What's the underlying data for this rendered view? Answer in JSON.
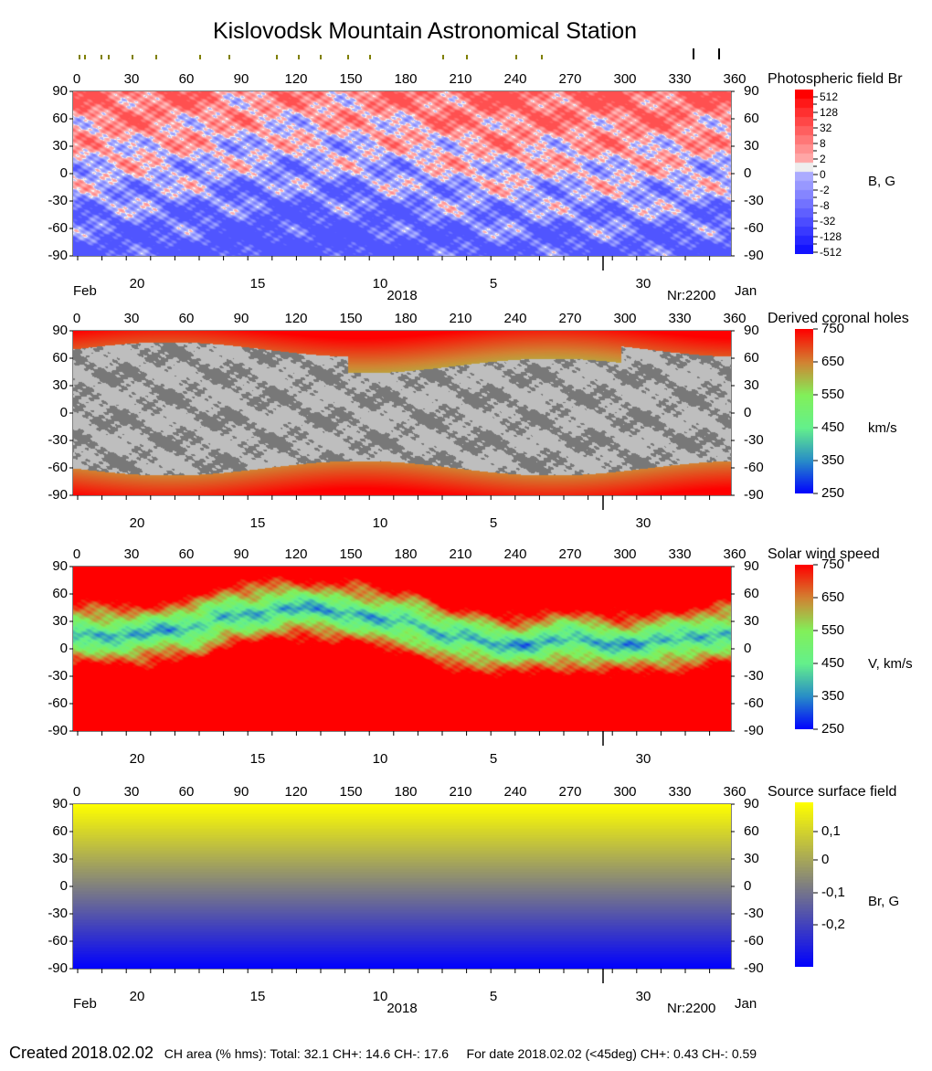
{
  "title": "Kislovodsk Mountain Astronomical Station",
  "longitude_ticks": [
    0,
    30,
    60,
    90,
    120,
    150,
    180,
    210,
    240,
    270,
    300,
    330,
    360
  ],
  "latitude_ticks": [
    90,
    60,
    30,
    0,
    -30,
    -60,
    -90
  ],
  "date_axis": {
    "day_labels": [
      {
        "lon": 35,
        "label": "20"
      },
      {
        "lon": 101,
        "label": "15"
      },
      {
        "lon": 168,
        "label": "10"
      },
      {
        "lon": 230,
        "label": "5"
      },
      {
        "lon": 312,
        "label": "30"
      }
    ],
    "month_left": "Feb",
    "month_right": "Jan",
    "year": "2018",
    "rotation": "Nr:2200",
    "month_boundary_lon": 290
  },
  "top_markers": {
    "olive_lons": [
      2,
      5,
      14,
      18,
      31,
      44,
      68,
      84,
      110,
      122,
      134,
      149,
      161,
      201,
      214,
      241,
      255
    ],
    "black_lons": [
      338,
      352
    ],
    "colors": {
      "olive": "#808000",
      "black": "#000000"
    }
  },
  "chart_data": [
    {
      "type": "heatmap",
      "title": "Photospheric field Br",
      "unit": "B, G",
      "xlim": [
        0,
        360
      ],
      "ylim": [
        -90,
        90
      ],
      "colorbar": {
        "ticks": [
          "512",
          "128",
          "32",
          "8",
          "2",
          "0",
          "-2",
          "-8",
          "-32",
          "-128",
          "-512"
        ],
        "colors": [
          "#ff0000",
          "#ffffff",
          "#0000ff"
        ]
      }
    },
    {
      "type": "heatmap",
      "title": "Derived coronal holes",
      "unit": "km/s",
      "xlim": [
        0,
        360
      ],
      "ylim": [
        -90,
        90
      ],
      "colorbar": {
        "ticks": [
          "750",
          "650",
          "550",
          "450",
          "350",
          "250"
        ],
        "range": [
          250,
          750
        ]
      },
      "neutral_line": true
    },
    {
      "type": "heatmap",
      "title": "Solar wind speed",
      "unit": "V, km/s",
      "xlim": [
        0,
        360
      ],
      "ylim": [
        -90,
        90
      ],
      "colorbar": {
        "ticks": [
          "750",
          "650",
          "550",
          "450",
          "350",
          "250"
        ],
        "range": [
          250,
          750
        ]
      }
    },
    {
      "type": "heatmap",
      "title": "Source surface field",
      "unit": "Br, G",
      "xlim": [
        0,
        360
      ],
      "ylim": [
        -90,
        90
      ],
      "colorbar": {
        "ticks": [
          "0,1",
          "0",
          "-0,1",
          "-0,2"
        ],
        "colors": [
          "#ffff00",
          "#808080",
          "#0000ff"
        ]
      },
      "neutral_line": true
    }
  ],
  "neutral_line": {
    "lon": [
      0,
      30,
      60,
      90,
      120,
      150,
      180,
      210,
      240,
      270,
      300,
      330,
      360
    ],
    "lat": [
      17,
      15,
      22,
      38,
      45,
      40,
      30,
      12,
      4,
      10,
      5,
      10,
      18
    ]
  },
  "footer": {
    "created_label": "Created",
    "created_date": "2018.02.02",
    "ch_area": "CH area (% hms): Total: 32.1 CH+: 14.6   CH-: 17.6",
    "for_date": "For date 2018.02.02 (<45deg) CH+: 0.43    CH-: 0.59"
  }
}
